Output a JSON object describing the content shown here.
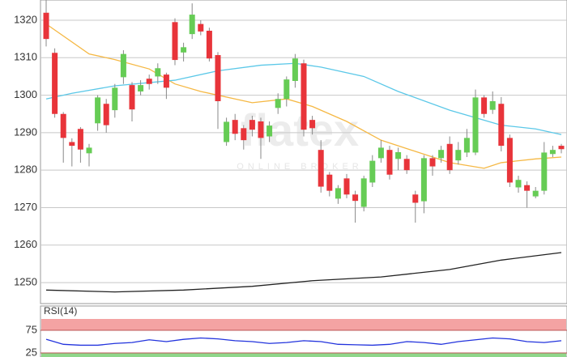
{
  "chart_data": [
    {
      "type": "candlestick",
      "watermark": "flatex",
      "watermark_sub": "ONLINE BROKER",
      "open": [
        1322,
        1311.3,
        1295,
        1287.5,
        1291,
        1284.5,
        1292.5,
        1297.7,
        1296,
        1304.8,
        1302.7,
        1301,
        1304.4,
        1305,
        1305.5,
        1319.5,
        1311.4,
        1316.3,
        1319,
        1317.2,
        1310.7,
        1287.5,
        1293.4,
        1291.2,
        1293.4,
        1293,
        1289,
        1296.6,
        1299,
        1303.8,
        1308.5,
        1293.4,
        1285.4,
        1278.8,
        1272.4,
        1277.8,
        1273.5,
        1270.2,
        1276.7,
        1283.2,
        1285.4,
        1283,
        1283,
        1273.5,
        1271.7,
        1283.2,
        1283.2,
        1287,
        1282.6,
        1284.7,
        1284.7,
        1299.4,
        1296.1,
        1297.7,
        1288.6,
        1275.4,
        1276,
        1273,
        1274.5,
        1284.3,
        1286.5
      ],
      "high": [
        1327,
        1312.5,
        1295.5,
        1288.5,
        1291.5,
        1287,
        1300,
        1299,
        1303,
        1312,
        1303.5,
        1304,
        1305.5,
        1308.5,
        1306,
        1320.5,
        1314,
        1324.5,
        1320,
        1318,
        1311.5,
        1294,
        1295,
        1292,
        1294.5,
        1294,
        1293,
        1300.5,
        1305,
        1311,
        1309.5,
        1294.5,
        1288,
        1279.5,
        1276,
        1279,
        1274.5,
        1278.5,
        1284,
        1288,
        1286.5,
        1286,
        1284,
        1274.5,
        1284,
        1284,
        1286.5,
        1289,
        1287.5,
        1291,
        1301.5,
        1300,
        1301,
        1299.5,
        1289.5,
        1278.5,
        1277,
        1275.5,
        1287.5,
        1286.5,
        1287
      ],
      "low": [
        1313,
        1294,
        1282,
        1281,
        1282,
        1281,
        1290.5,
        1290,
        1294,
        1303,
        1293,
        1300,
        1301.5,
        1303,
        1299,
        1308,
        1309,
        1315,
        1316,
        1309,
        1291,
        1286.5,
        1288,
        1285.5,
        1289,
        1283,
        1287.5,
        1295,
        1297,
        1302,
        1289,
        1289.5,
        1274,
        1273,
        1271,
        1272.5,
        1266,
        1269,
        1275.5,
        1282,
        1277.5,
        1280,
        1279,
        1266,
        1268.5,
        1278.5,
        1282,
        1279,
        1281.5,
        1283.5,
        1284,
        1294,
        1295,
        1285,
        1275.5,
        1274,
        1270,
        1272.5,
        1273.5,
        1283.5,
        1284.5
      ],
      "close": [
        1315,
        1295,
        1288.6,
        1286.5,
        1285.5,
        1286,
        1299.4,
        1292,
        1302,
        1311,
        1296.2,
        1302.7,
        1303,
        1307.2,
        1302,
        1309.4,
        1312.8,
        1321.5,
        1317,
        1309.8,
        1298.4,
        1292.9,
        1289.7,
        1288,
        1290.8,
        1288.6,
        1291.9,
        1299,
        1304.2,
        1309.8,
        1290.8,
        1291.2,
        1275.6,
        1274.5,
        1275.2,
        1273.5,
        1271.8,
        1277.8,
        1282.5,
        1286,
        1278.8,
        1284.8,
        1280,
        1271.3,
        1283.2,
        1281,
        1285.4,
        1280,
        1285.4,
        1288.6,
        1299.4,
        1295,
        1298.4,
        1286.5,
        1276.7,
        1277.4,
        1274.5,
        1274.5,
        1284.7,
        1285.4,
        1285.6
      ],
      "up_color": "#66cc55",
      "down_color": "#e8343a",
      "wick_color": "#888888",
      "ylim": [
        1244.4,
        1325.4
      ],
      "yticks": [
        1250,
        1260,
        1270,
        1280,
        1290,
        1300,
        1310,
        1320
      ],
      "grid": true,
      "lines": [
        {
          "color": "#f5b844",
          "x": [
            0,
            5,
            8,
            12,
            15,
            18,
            24,
            28,
            31,
            35,
            39,
            43,
            47,
            51,
            53,
            57,
            60
          ],
          "values": [
            1319,
            1311,
            1309.5,
            1307,
            1303,
            1301,
            1298,
            1299,
            1297,
            1293,
            1288,
            1285,
            1282,
            1280.5,
            1282,
            1283,
            1283.5
          ]
        },
        {
          "color": "#5bc8e8",
          "x": [
            0,
            3,
            8,
            15,
            20,
            25,
            29,
            32,
            37,
            41,
            47,
            53,
            57,
            60
          ],
          "values": [
            1299,
            1300.5,
            1302.5,
            1304,
            1306.5,
            1308,
            1308.5,
            1307.5,
            1305,
            1301,
            1296,
            1292,
            1291,
            1289.5
          ]
        },
        {
          "color": "#222222",
          "x": [
            0,
            8,
            16,
            24,
            31,
            39,
            47,
            53,
            60
          ],
          "values": [
            1248,
            1247.5,
            1248,
            1249,
            1250.5,
            1251.5,
            1253.5,
            1256,
            1258
          ]
        }
      ]
    },
    {
      "type": "line",
      "title": "RSI(14)",
      "x": [
        0,
        2,
        4,
        6,
        8,
        10,
        12,
        14,
        16,
        18,
        20,
        22,
        24,
        26,
        28,
        30,
        32,
        34,
        36,
        38,
        40,
        42,
        44,
        46,
        48,
        50,
        52,
        54,
        56,
        58,
        60
      ],
      "values": [
        55,
        44,
        42,
        42,
        46,
        48,
        54,
        50,
        55,
        58,
        56,
        52,
        50,
        46,
        48,
        52,
        50,
        44,
        43,
        42,
        44,
        50,
        48,
        44,
        50,
        54,
        58,
        56,
        50,
        48,
        52
      ],
      "color": "#2233dd",
      "overbought_color": "#f4a3a3",
      "oversold_color": "#8fd68a",
      "ylim": [
        16,
        100
      ],
      "yticks": [
        25,
        75
      ]
    }
  ]
}
